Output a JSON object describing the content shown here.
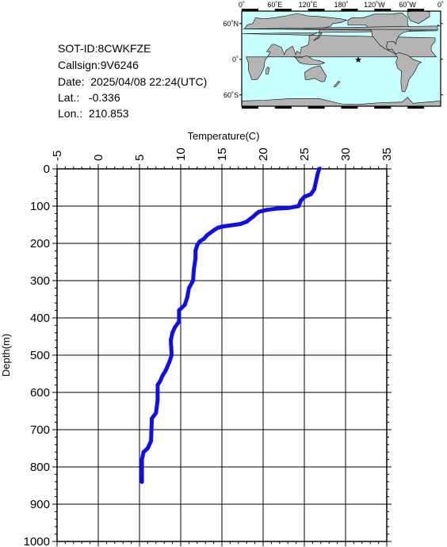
{
  "header": {
    "sot_id": "SOT-ID:8CWKFZE",
    "callsign": "Callsign:9V6246",
    "date": "Date:  2025/04/08 22:24(UTC)",
    "lat": "Lat.:   -0.336",
    "lon": "Lon.:  210.853"
  },
  "map": {
    "lon_ticks": [
      "0˚",
      "60˚E",
      "120˚E",
      "180˚",
      "120˚W",
      "60˚W",
      "0˚"
    ],
    "lat_ticks": [
      "60˚N",
      "0˚",
      "60˚S"
    ],
    "ocean_color": "#c8ffff",
    "land_color": "#b4b4b4",
    "marker": {
      "symbol": "★",
      "color": "#ff0000",
      "lon": 210.853,
      "lat": -0.336
    }
  },
  "chart_data": {
    "type": "line",
    "xlabel": "Temperature(C)",
    "ylabel": "Depth(m)",
    "xlim": [
      -5,
      35
    ],
    "ylim": [
      0,
      1000
    ],
    "y_inverted": true,
    "x_axis_position": "top",
    "grid": true,
    "xticks": [
      -5,
      0,
      5,
      10,
      15,
      20,
      25,
      30,
      35
    ],
    "yticks": [
      0,
      100,
      200,
      300,
      400,
      500,
      600,
      700,
      800,
      900,
      1000
    ],
    "series": [
      {
        "color": "#1010e0",
        "points": [
          [
            26.8,
            0
          ],
          [
            26.6,
            15
          ],
          [
            26.4,
            35
          ],
          [
            26.2,
            55
          ],
          [
            25.8,
            68
          ],
          [
            25.0,
            75
          ],
          [
            24.6,
            85
          ],
          [
            24.3,
            100
          ],
          [
            23.0,
            105
          ],
          [
            21.5,
            107
          ],
          [
            20.5,
            110
          ],
          [
            19.5,
            115
          ],
          [
            19.2,
            120
          ],
          [
            18.8,
            128
          ],
          [
            18.4,
            135
          ],
          [
            18.0,
            142
          ],
          [
            17.2,
            148
          ],
          [
            16.0,
            152
          ],
          [
            15.0,
            155
          ],
          [
            14.5,
            158
          ],
          [
            14.0,
            165
          ],
          [
            13.2,
            178
          ],
          [
            12.8,
            188
          ],
          [
            12.3,
            195
          ],
          [
            12.0,
            205
          ],
          [
            11.8,
            220
          ],
          [
            11.8,
            240
          ],
          [
            11.6,
            270
          ],
          [
            11.5,
            300
          ],
          [
            11.0,
            320
          ],
          [
            10.8,
            345
          ],
          [
            10.5,
            365
          ],
          [
            9.8,
            380
          ],
          [
            9.8,
            410
          ],
          [
            9.3,
            425
          ],
          [
            9.0,
            440
          ],
          [
            8.8,
            460
          ],
          [
            8.9,
            500
          ],
          [
            8.6,
            520
          ],
          [
            8.2,
            540
          ],
          [
            7.8,
            555
          ],
          [
            7.5,
            570
          ],
          [
            7.2,
            580
          ],
          [
            7.2,
            620
          ],
          [
            7.0,
            655
          ],
          [
            6.5,
            670
          ],
          [
            6.4,
            730
          ],
          [
            6.0,
            750
          ],
          [
            5.5,
            760
          ],
          [
            5.3,
            780
          ],
          [
            5.3,
            840
          ]
        ]
      }
    ]
  }
}
